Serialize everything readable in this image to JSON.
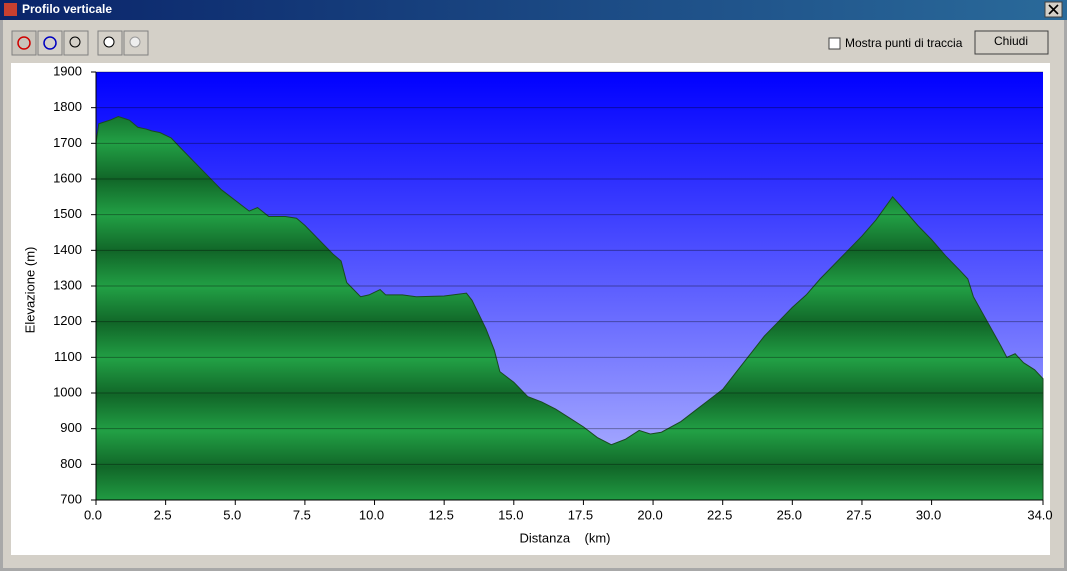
{
  "window": {
    "title": "Profilo verticale",
    "checkbox_label": "Mostra punti di traccia",
    "button": "Chiudi"
  },
  "chart_data": {
    "type": "area",
    "x_label": "Distanza    (km)",
    "y_label": "Elevazione (m)",
    "x": [
      0.0,
      0.1,
      0.5,
      0.8,
      1.2,
      1.5,
      1.8,
      2.0,
      2.3,
      2.7,
      3.0,
      3.5,
      4.0,
      4.5,
      5.0,
      5.5,
      5.8,
      6.2,
      6.8,
      7.2,
      7.5,
      8.0,
      8.5,
      8.8,
      9.0,
      9.5,
      9.8,
      10.2,
      10.4,
      11.0,
      11.5,
      12.5,
      13.3,
      13.5,
      14.0,
      14.3,
      14.5,
      15.0,
      15.5,
      16.0,
      16.5,
      17.0,
      17.5,
      18.0,
      18.5,
      19.0,
      19.5,
      19.9,
      20.3,
      21.0,
      21.5,
      22.0,
      22.5,
      23.0,
      23.5,
      24.0,
      24.5,
      25.0,
      25.5,
      26.0,
      26.5,
      27.0,
      27.5,
      28.0,
      28.6,
      29.0,
      29.5,
      30.0,
      30.5,
      31.0,
      31.3,
      31.5,
      32.0,
      32.5,
      32.7,
      33.0,
      33.3,
      33.7,
      34.0
    ],
    "values": [
      1700,
      1755,
      1765,
      1775,
      1765,
      1745,
      1740,
      1735,
      1730,
      1715,
      1690,
      1650,
      1610,
      1570,
      1540,
      1510,
      1520,
      1495,
      1495,
      1490,
      1470,
      1430,
      1390,
      1370,
      1310,
      1270,
      1275,
      1290,
      1275,
      1275,
      1270,
      1272,
      1280,
      1260,
      1180,
      1120,
      1060,
      1030,
      990,
      975,
      955,
      930,
      905,
      875,
      855,
      870,
      895,
      885,
      890,
      920,
      950,
      980,
      1010,
      1060,
      1110,
      1160,
      1200,
      1240,
      1275,
      1320,
      1360,
      1400,
      1440,
      1485,
      1550,
      1515,
      1470,
      1430,
      1385,
      1345,
      1320,
      1270,
      1200,
      1130,
      1100,
      1110,
      1085,
      1065,
      1040
    ],
    "color": "#22a045",
    "xlim": [
      0,
      34
    ],
    "ylim": [
      700,
      1900
    ],
    "xticks": [
      {
        "value": 0,
        "label": "0.0"
      },
      2.5,
      {
        "value": 5,
        "label": "5.0"
      },
      7.5,
      {
        "value": 10,
        "label": "10.0"
      },
      12.5,
      {
        "value": 15,
        "label": "15.0"
      },
      17.5,
      {
        "value": 20,
        "label": "20.0"
      },
      22.5,
      {
        "value": 25,
        "label": "25.0"
      },
      27.5,
      {
        "value": 30,
        "label": "30.0"
      },
      {
        "value": 34,
        "label": "34.0"
      }
    ],
    "yticks": [
      700,
      800,
      900,
      1000,
      1100,
      1200,
      1300,
      1400,
      1500,
      1600,
      1700,
      1800,
      1900
    ],
    "grid": true
  }
}
